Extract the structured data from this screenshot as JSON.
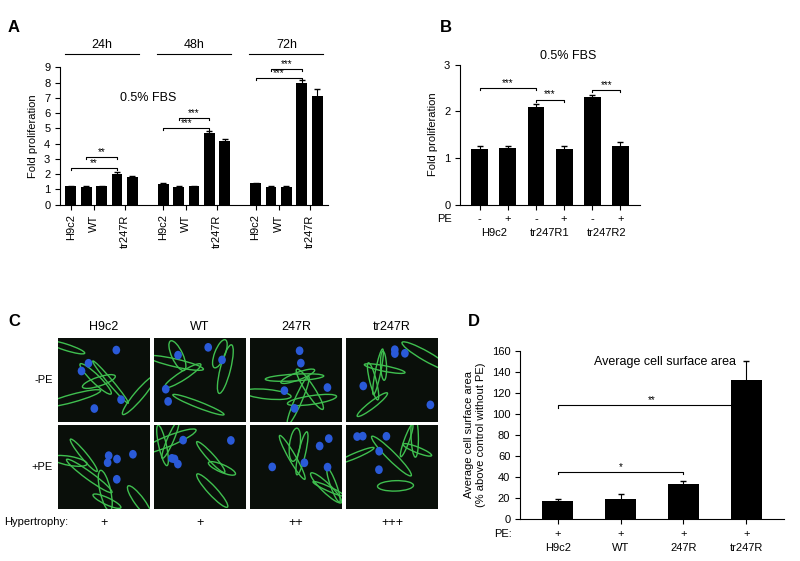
{
  "chart_data": [
    {
      "panel": "A",
      "type": "bar",
      "annotation": "0.5% FBS",
      "y_label": "Fold proliferation",
      "color": "#000000",
      "ylim": [
        0,
        9
      ],
      "yticks": [
        0,
        1,
        2,
        3,
        4,
        5,
        6,
        7,
        8,
        9
      ],
      "bar_labels": [
        {
          "label": "H9c2",
          "bars": [
            0
          ]
        },
        {
          "label": "WT",
          "bars": [
            1,
            2
          ]
        },
        {
          "label": "tr247R",
          "bars": [
            3,
            4
          ]
        }
      ],
      "groups": [
        {
          "name": "24h",
          "values": [
            1.2,
            1.15,
            1.2,
            2.0,
            1.8
          ],
          "errors": [
            0.05,
            0.05,
            0.05,
            0.15,
            0.1
          ],
          "significance": [
            {
              "from": 0,
              "to": 3,
              "label": "**",
              "y": 2.4
            },
            {
              "from": 1,
              "to": 3,
              "label": "**",
              "y": 3.1
            }
          ]
        },
        {
          "name": "48h",
          "values": [
            1.35,
            1.15,
            1.2,
            4.7,
            4.2
          ],
          "errors": [
            0.1,
            0.05,
            0.05,
            0.1,
            0.1
          ],
          "significance": [
            {
              "from": 0,
              "to": 3,
              "label": "***",
              "y": 5.0
            },
            {
              "from": 1,
              "to": 3,
              "label": "***",
              "y": 5.7
            }
          ]
        },
        {
          "name": "72h",
          "values": [
            1.4,
            1.15,
            1.15,
            8.0,
            7.1
          ],
          "errors": [
            0.05,
            0.1,
            0.1,
            0.15,
            0.5
          ],
          "significance": [
            {
              "from": 0,
              "to": 3,
              "label": "***",
              "y": 8.3
            },
            {
              "from": 1,
              "to": 3,
              "label": "***",
              "y": 8.9
            }
          ]
        }
      ]
    },
    {
      "panel": "B",
      "type": "bar",
      "annotation": "0.5% FBS",
      "y_label": "Fold proliferation",
      "color": "#000000",
      "ylim": [
        0,
        3
      ],
      "yticks": [
        0,
        1,
        2,
        3
      ],
      "categories": [
        "H9c2",
        "tr247R1",
        "tr247R2"
      ],
      "condition_label": "PE",
      "series": [
        {
          "name": "-",
          "values": [
            1.2,
            2.1,
            2.3
          ],
          "errors": [
            0.05,
            0.05,
            0.05
          ]
        },
        {
          "name": "+",
          "values": [
            1.22,
            1.2,
            1.25
          ],
          "errors": [
            0.03,
            0.05,
            0.1
          ]
        }
      ],
      "significance": [
        {
          "from": 0,
          "to": 2,
          "label": "***",
          "y": 2.5
        },
        {
          "from": 2,
          "to": 3,
          "label": "***",
          "y": 2.25
        },
        {
          "from": 4,
          "to": 5,
          "label": "***",
          "y": 2.45
        }
      ]
    },
    {
      "panel": "D",
      "type": "bar",
      "title": "Average cell surface area",
      "y_label": "Average cell surface area\n(% above control without PE)",
      "color": "#000000",
      "ylim": [
        0,
        160
      ],
      "yticks": [
        0,
        20,
        40,
        60,
        80,
        100,
        120,
        140,
        160
      ],
      "categories": [
        "H9c2",
        "WT",
        "247R",
        "tr247R"
      ],
      "condition_label": "PE:",
      "condition_values": [
        "+",
        "+",
        "+",
        "+"
      ],
      "values": [
        17,
        19,
        33,
        132
      ],
      "errors": [
        2,
        5,
        3,
        18
      ],
      "significance": [
        {
          "from": 0,
          "to": 2,
          "label": "*",
          "y": 45
        },
        {
          "from": 0,
          "to": 3,
          "label": "**",
          "y": 108
        }
      ]
    }
  ],
  "image_panel": {
    "panel": "C",
    "columns": [
      "H9c2",
      "WT",
      "247R",
      "tr247R"
    ],
    "rows": [
      "-PE",
      "+PE"
    ],
    "footer_label": "Hypertrophy:",
    "footer_values": [
      "+",
      "+",
      "++",
      "+++"
    ]
  }
}
